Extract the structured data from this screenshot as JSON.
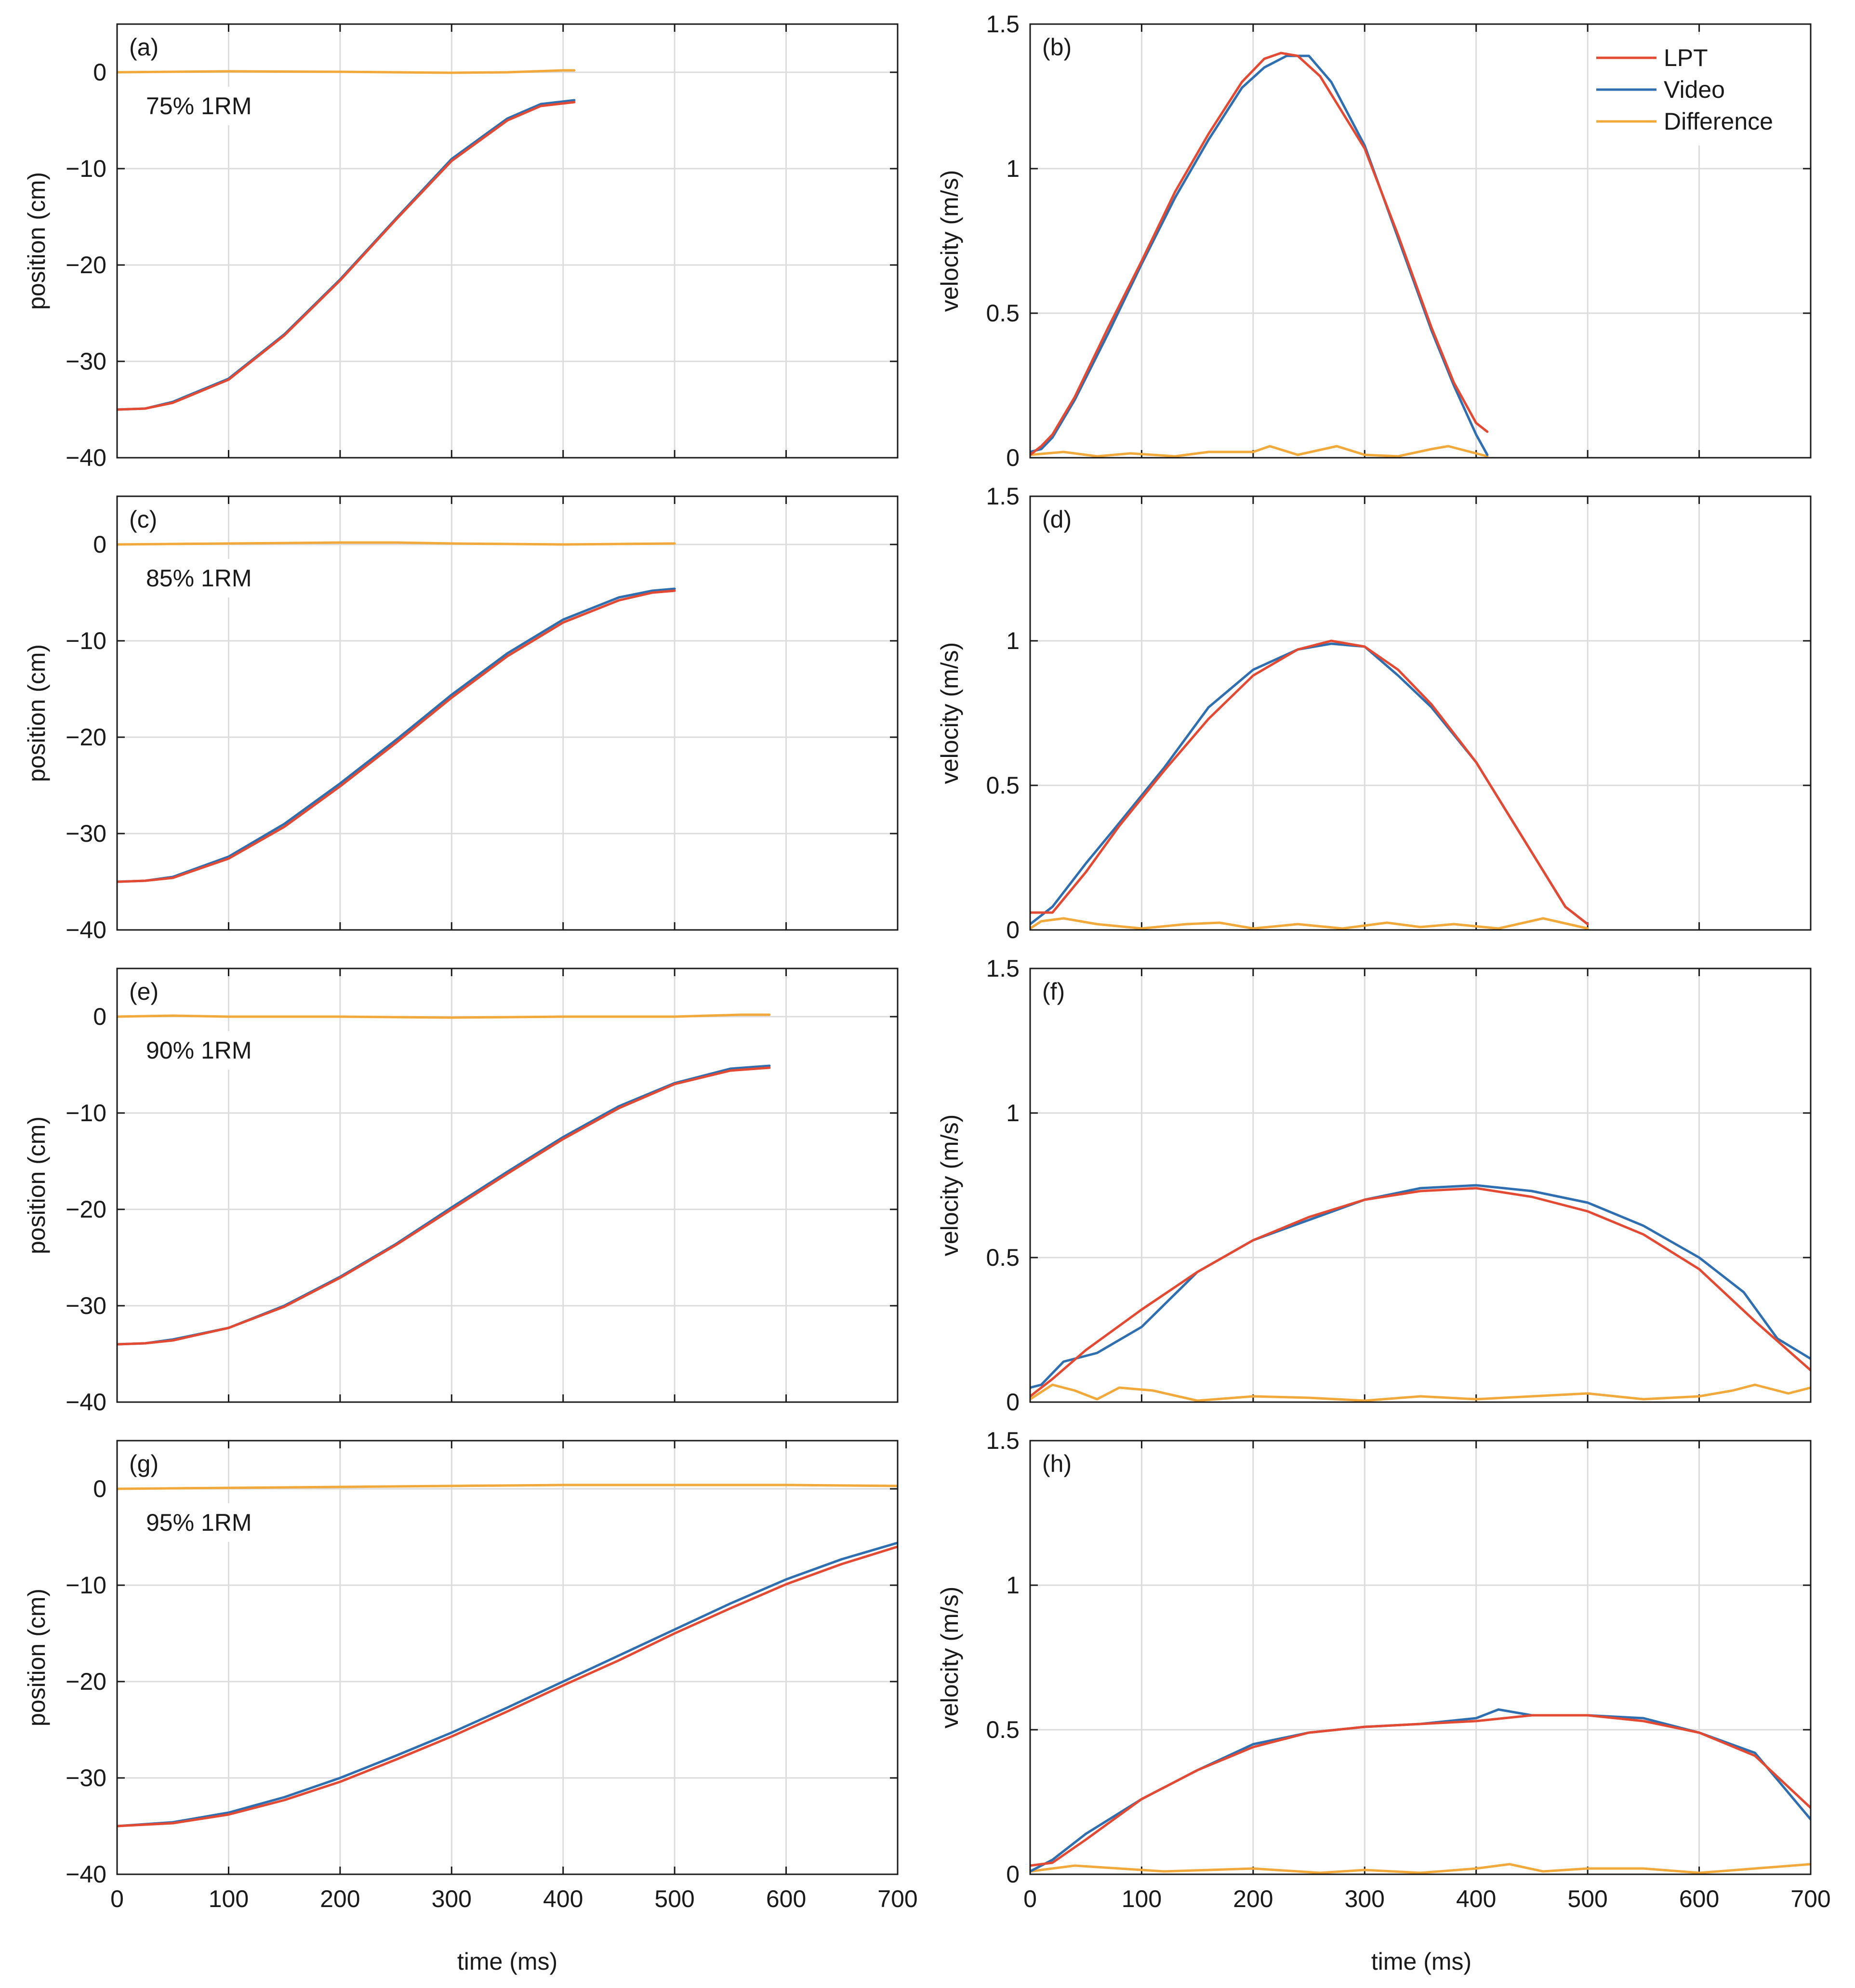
{
  "figure": {
    "x_axis_label": "time (ms)",
    "legend": [
      "LPT",
      "Video",
      "Difference"
    ]
  },
  "colors": {
    "lpt": "#e24a33",
    "video": "#2f6fb0",
    "difference": "#f2a93b",
    "grid": "#dcdcdc",
    "axis": "#1a1a1a"
  },
  "chart_data": [
    {
      "id": "a",
      "type": "line",
      "tag": "(a)",
      "annotation": "75% 1RM",
      "xlabel": "time (ms)",
      "ylabel": "position (cm)",
      "xlim": [
        0,
        700
      ],
      "ylim": [
        -40,
        5
      ],
      "xticks": [
        0,
        100,
        200,
        300,
        400,
        500,
        600,
        700
      ],
      "yticks": [
        -40,
        -30,
        -20,
        -10,
        0
      ],
      "series": [
        {
          "name": "Difference",
          "color_key": "difference",
          "x": [
            0,
            100,
            200,
            300,
            350,
            400,
            410
          ],
          "y": [
            0,
            0.1,
            0.05,
            -0.05,
            0,
            0.2,
            0.2
          ]
        },
        {
          "name": "Video",
          "color_key": "video",
          "x": [
            0,
            25,
            50,
            100,
            150,
            200,
            250,
            300,
            350,
            380,
            410
          ],
          "y": [
            -35,
            -34.9,
            -34.2,
            -31.8,
            -27.2,
            -21.5,
            -15.2,
            -9,
            -4.8,
            -3.3,
            -2.9
          ]
        },
        {
          "name": "LPT",
          "color_key": "lpt",
          "x": [
            0,
            25,
            50,
            100,
            150,
            200,
            250,
            300,
            350,
            380,
            410
          ],
          "y": [
            -35,
            -34.9,
            -34.3,
            -31.9,
            -27.3,
            -21.6,
            -15.3,
            -9.2,
            -5,
            -3.5,
            -3.1
          ]
        }
      ]
    },
    {
      "id": "b",
      "type": "line",
      "tag": "(b)",
      "annotation": "",
      "xlabel": "time (ms)",
      "ylabel": "velocity (m/s)",
      "xlim": [
        0,
        700
      ],
      "ylim": [
        0,
        1.5
      ],
      "xticks": [
        0,
        100,
        200,
        300,
        400,
        500,
        600,
        700
      ],
      "yticks": [
        0,
        0.5,
        1,
        1.5
      ],
      "legend_position": "top-right",
      "series": [
        {
          "name": "Difference",
          "color_key": "difference",
          "x": [
            0,
            30,
            60,
            90,
            130,
            160,
            200,
            215,
            240,
            275,
            300,
            330,
            360,
            375,
            395,
            410
          ],
          "y": [
            0.01,
            0.02,
            0.005,
            0.015,
            0.005,
            0.02,
            0.02,
            0.04,
            0.01,
            0.04,
            0.01,
            0.005,
            0.03,
            0.04,
            0.02,
            0.005
          ]
        },
        {
          "name": "Video",
          "color_key": "video",
          "x": [
            0,
            10,
            20,
            40,
            70,
            100,
            130,
            160,
            190,
            210,
            230,
            250,
            270,
            300,
            330,
            360,
            380,
            400,
            410
          ],
          "y": [
            0.02,
            0.03,
            0.07,
            0.2,
            0.43,
            0.67,
            0.9,
            1.1,
            1.28,
            1.35,
            1.39,
            1.39,
            1.3,
            1.08,
            0.76,
            0.44,
            0.25,
            0.08,
            0.01
          ]
        },
        {
          "name": "LPT",
          "color_key": "lpt",
          "x": [
            0,
            10,
            20,
            40,
            70,
            100,
            130,
            160,
            190,
            210,
            225,
            240,
            260,
            300,
            330,
            360,
            380,
            400,
            410
          ],
          "y": [
            0.01,
            0.04,
            0.08,
            0.21,
            0.45,
            0.68,
            0.92,
            1.12,
            1.3,
            1.38,
            1.4,
            1.39,
            1.32,
            1.07,
            0.77,
            0.45,
            0.26,
            0.12,
            0.09
          ]
        }
      ]
    },
    {
      "id": "c",
      "type": "line",
      "tag": "(c)",
      "annotation": "85% 1RM",
      "xlabel": "time (ms)",
      "ylabel": "position (cm)",
      "xlim": [
        0,
        700
      ],
      "ylim": [
        -40,
        5
      ],
      "xticks": [
        0,
        100,
        200,
        300,
        400,
        500,
        600,
        700
      ],
      "yticks": [
        -40,
        -30,
        -20,
        -10,
        0
      ],
      "series": [
        {
          "name": "Difference",
          "color_key": "difference",
          "x": [
            0,
            100,
            200,
            250,
            300,
            400,
            500
          ],
          "y": [
            0,
            0.1,
            0.2,
            0.2,
            0.1,
            0,
            0.1
          ]
        },
        {
          "name": "Video",
          "color_key": "video",
          "x": [
            0,
            25,
            50,
            100,
            150,
            200,
            250,
            300,
            350,
            400,
            450,
            480,
            500
          ],
          "y": [
            -35,
            -34.9,
            -34.5,
            -32.4,
            -29,
            -24.8,
            -20.3,
            -15.6,
            -11.3,
            -7.8,
            -5.5,
            -4.8,
            -4.6
          ]
        },
        {
          "name": "LPT",
          "color_key": "lpt",
          "x": [
            0,
            25,
            50,
            100,
            150,
            200,
            250,
            300,
            350,
            400,
            450,
            480,
            500
          ],
          "y": [
            -35,
            -34.9,
            -34.6,
            -32.6,
            -29.3,
            -25.1,
            -20.6,
            -15.9,
            -11.6,
            -8.1,
            -5.8,
            -5,
            -4.8
          ]
        }
      ]
    },
    {
      "id": "d",
      "type": "line",
      "tag": "(d)",
      "annotation": "",
      "xlabel": "time (ms)",
      "ylabel": "velocity (m/s)",
      "xlim": [
        0,
        700
      ],
      "ylim": [
        0,
        1.5
      ],
      "xticks": [
        0,
        100,
        200,
        300,
        400,
        500,
        600,
        700
      ],
      "yticks": [
        0,
        0.5,
        1,
        1.5
      ],
      "series": [
        {
          "name": "Difference",
          "color_key": "difference",
          "x": [
            0,
            10,
            30,
            60,
            100,
            140,
            170,
            200,
            240,
            280,
            320,
            350,
            380,
            420,
            460,
            500
          ],
          "y": [
            0.005,
            0.03,
            0.04,
            0.02,
            0.005,
            0.02,
            0.025,
            0.005,
            0.02,
            0.005,
            0.025,
            0.01,
            0.02,
            0.005,
            0.04,
            0.005
          ]
        },
        {
          "name": "Video",
          "color_key": "video",
          "x": [
            0,
            20,
            50,
            80,
            120,
            160,
            200,
            240,
            270,
            300,
            330,
            360,
            400,
            440,
            480,
            500
          ],
          "y": [
            0.02,
            0.08,
            0.23,
            0.37,
            0.56,
            0.77,
            0.9,
            0.97,
            0.99,
            0.98,
            0.88,
            0.77,
            0.58,
            0.33,
            0.08,
            0.02
          ]
        },
        {
          "name": "LPT",
          "color_key": "lpt",
          "x": [
            0,
            20,
            50,
            80,
            120,
            160,
            200,
            240,
            270,
            300,
            330,
            360,
            400,
            440,
            480,
            500
          ],
          "y": [
            0.06,
            0.06,
            0.2,
            0.36,
            0.55,
            0.73,
            0.88,
            0.97,
            1,
            0.98,
            0.9,
            0.78,
            0.58,
            0.33,
            0.08,
            0.02
          ]
        }
      ]
    },
    {
      "id": "e",
      "type": "line",
      "tag": "(e)",
      "annotation": "90% 1RM",
      "xlabel": "time (ms)",
      "ylabel": "position (cm)",
      "xlim": [
        0,
        700
      ],
      "ylim": [
        -40,
        5
      ],
      "xticks": [
        0,
        100,
        200,
        300,
        400,
        500,
        600,
        700
      ],
      "yticks": [
        -40,
        -30,
        -20,
        -10,
        0
      ],
      "series": [
        {
          "name": "Difference",
          "color_key": "difference",
          "x": [
            0,
            50,
            100,
            200,
            300,
            400,
            500,
            560,
            585
          ],
          "y": [
            0,
            0.1,
            0,
            0,
            -0.1,
            0,
            0,
            0.2,
            0.2
          ]
        },
        {
          "name": "Video",
          "color_key": "video",
          "x": [
            0,
            25,
            50,
            100,
            150,
            200,
            250,
            300,
            350,
            400,
            450,
            500,
            550,
            585
          ],
          "y": [
            -34,
            -33.9,
            -33.5,
            -32.3,
            -30,
            -27,
            -23.6,
            -19.8,
            -16.1,
            -12.5,
            -9.3,
            -6.9,
            -5.4,
            -5.1
          ]
        },
        {
          "name": "LPT",
          "color_key": "lpt",
          "x": [
            0,
            25,
            50,
            100,
            150,
            200,
            250,
            300,
            350,
            400,
            450,
            500,
            550,
            585
          ],
          "y": [
            -34,
            -33.9,
            -33.6,
            -32.3,
            -30.1,
            -27.1,
            -23.7,
            -20,
            -16.3,
            -12.7,
            -9.5,
            -7,
            -5.6,
            -5.3
          ]
        }
      ]
    },
    {
      "id": "f",
      "type": "line",
      "tag": "(f)",
      "annotation": "",
      "xlabel": "time (ms)",
      "ylabel": "velocity (m/s)",
      "xlim": [
        0,
        700
      ],
      "ylim": [
        0,
        1.5
      ],
      "xticks": [
        0,
        100,
        200,
        300,
        400,
        500,
        600,
        700
      ],
      "yticks": [
        0,
        0.5,
        1,
        1.5
      ],
      "series": [
        {
          "name": "Difference",
          "color_key": "difference",
          "x": [
            0,
            20,
            40,
            60,
            80,
            110,
            150,
            200,
            250,
            300,
            350,
            400,
            450,
            500,
            550,
            600,
            630,
            650,
            680,
            700
          ],
          "y": [
            0.01,
            0.06,
            0.04,
            0.01,
            0.05,
            0.04,
            0.005,
            0.02,
            0.015,
            0.005,
            0.02,
            0.01,
            0.02,
            0.03,
            0.01,
            0.02,
            0.04,
            0.06,
            0.03,
            0.05
          ]
        },
        {
          "name": "Video",
          "color_key": "video",
          "x": [
            0,
            10,
            30,
            60,
            100,
            150,
            200,
            250,
            300,
            350,
            400,
            450,
            500,
            550,
            600,
            640,
            670,
            700
          ],
          "y": [
            0.05,
            0.06,
            0.14,
            0.17,
            0.26,
            0.45,
            0.56,
            0.63,
            0.7,
            0.74,
            0.75,
            0.73,
            0.69,
            0.61,
            0.5,
            0.38,
            0.22,
            0.15
          ]
        },
        {
          "name": "LPT",
          "color_key": "lpt",
          "x": [
            0,
            20,
            50,
            100,
            150,
            200,
            250,
            300,
            350,
            400,
            450,
            500,
            550,
            600,
            650,
            700
          ],
          "y": [
            0.02,
            0.08,
            0.18,
            0.32,
            0.45,
            0.56,
            0.64,
            0.7,
            0.73,
            0.74,
            0.71,
            0.66,
            0.58,
            0.46,
            0.28,
            0.11
          ]
        }
      ]
    },
    {
      "id": "g",
      "type": "line",
      "tag": "(g)",
      "annotation": "95% 1RM",
      "xlabel": "time (ms)",
      "ylabel": "position (cm)",
      "xlim": [
        0,
        700
      ],
      "ylim": [
        -40,
        5
      ],
      "xticks": [
        0,
        100,
        200,
        300,
        400,
        500,
        600,
        700
      ],
      "yticks": [
        -40,
        -30,
        -20,
        -10,
        0
      ],
      "series": [
        {
          "name": "Difference",
          "color_key": "difference",
          "x": [
            0,
            100,
            200,
            300,
            400,
            500,
            600,
            700
          ],
          "y": [
            0,
            0.1,
            0.2,
            0.3,
            0.4,
            0.4,
            0.4,
            0.3
          ]
        },
        {
          "name": "Video",
          "color_key": "video",
          "x": [
            0,
            50,
            100,
            150,
            200,
            250,
            300,
            350,
            400,
            450,
            500,
            550,
            600,
            650,
            700
          ],
          "y": [
            -35,
            -34.6,
            -33.6,
            -32,
            -30,
            -27.7,
            -25.3,
            -22.7,
            -20,
            -17.3,
            -14.6,
            -11.9,
            -9.4,
            -7.3,
            -5.6
          ]
        },
        {
          "name": "LPT",
          "color_key": "lpt",
          "x": [
            0,
            50,
            100,
            150,
            200,
            250,
            300,
            350,
            400,
            450,
            500,
            550,
            600,
            650,
            700
          ],
          "y": [
            -35,
            -34.7,
            -33.8,
            -32.3,
            -30.4,
            -28.1,
            -25.7,
            -23.1,
            -20.4,
            -17.8,
            -15,
            -12.4,
            -9.9,
            -7.8,
            -6
          ]
        }
      ]
    },
    {
      "id": "h",
      "type": "line",
      "tag": "(h)",
      "annotation": "",
      "xlabel": "time (ms)",
      "ylabel": "velocity (m/s)",
      "xlim": [
        0,
        700
      ],
      "ylim": [
        0,
        1.5
      ],
      "xticks": [
        0,
        100,
        200,
        300,
        400,
        500,
        600,
        700
      ],
      "yticks": [
        0,
        0.5,
        1,
        1.5
      ],
      "series": [
        {
          "name": "Difference",
          "color_key": "difference",
          "x": [
            0,
            40,
            80,
            120,
            200,
            260,
            300,
            350,
            400,
            430,
            460,
            500,
            550,
            600,
            650,
            700
          ],
          "y": [
            0.01,
            0.03,
            0.02,
            0.01,
            0.02,
            0.005,
            0.015,
            0.005,
            0.02,
            0.035,
            0.01,
            0.02,
            0.02,
            0.005,
            0.02,
            0.035
          ]
        },
        {
          "name": "Video",
          "color_key": "video",
          "x": [
            0,
            20,
            50,
            100,
            150,
            200,
            250,
            300,
            350,
            400,
            420,
            450,
            500,
            550,
            600,
            650,
            700
          ],
          "y": [
            0.01,
            0.05,
            0.14,
            0.26,
            0.36,
            0.45,
            0.49,
            0.51,
            0.52,
            0.54,
            0.57,
            0.55,
            0.55,
            0.54,
            0.49,
            0.42,
            0.19
          ]
        },
        {
          "name": "LPT",
          "color_key": "lpt",
          "x": [
            0,
            20,
            50,
            100,
            150,
            200,
            250,
            300,
            350,
            400,
            450,
            500,
            550,
            600,
            650,
            700
          ],
          "y": [
            0.03,
            0.04,
            0.12,
            0.26,
            0.36,
            0.44,
            0.49,
            0.51,
            0.52,
            0.53,
            0.55,
            0.55,
            0.53,
            0.49,
            0.41,
            0.23
          ]
        }
      ]
    }
  ]
}
